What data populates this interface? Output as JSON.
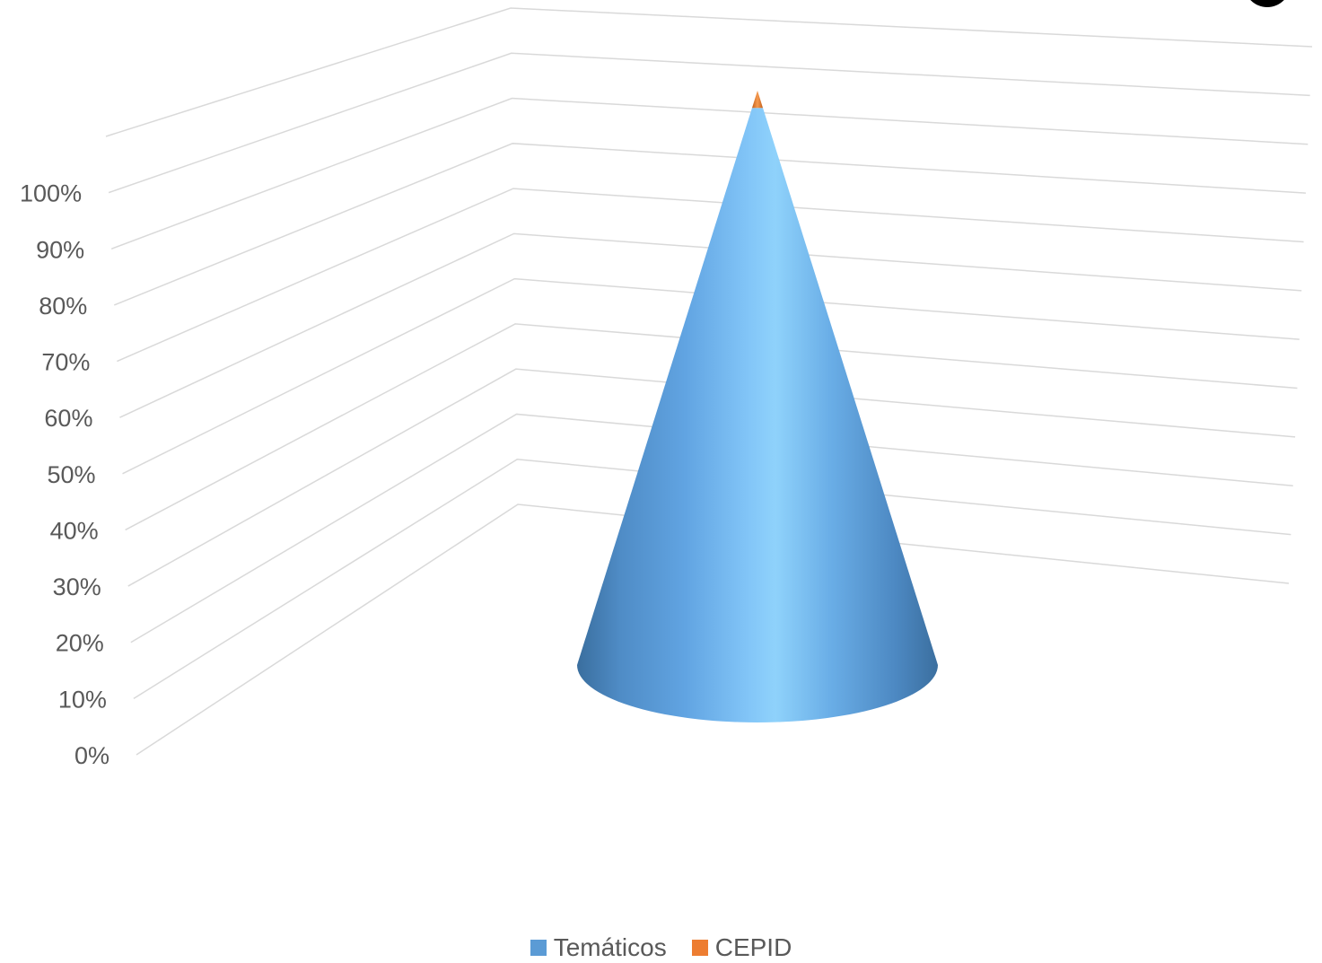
{
  "chart_data": {
    "type": "bar",
    "style": "3d-cone-100%-stacked",
    "categories": [
      ""
    ],
    "series": [
      {
        "name": "Temáticos",
        "values": [
          97
        ],
        "color": "#5b9bd5"
      },
      {
        "name": "CEPID",
        "values": [
          3
        ],
        "color": "#ed7d31"
      }
    ],
    "ylim": [
      0,
      100
    ],
    "y_ticks": [
      "0%",
      "10%",
      "20%",
      "30%",
      "40%",
      "50%",
      "60%",
      "70%",
      "80%",
      "90%",
      "100%"
    ],
    "grid": true,
    "legend_position": "bottom"
  }
}
